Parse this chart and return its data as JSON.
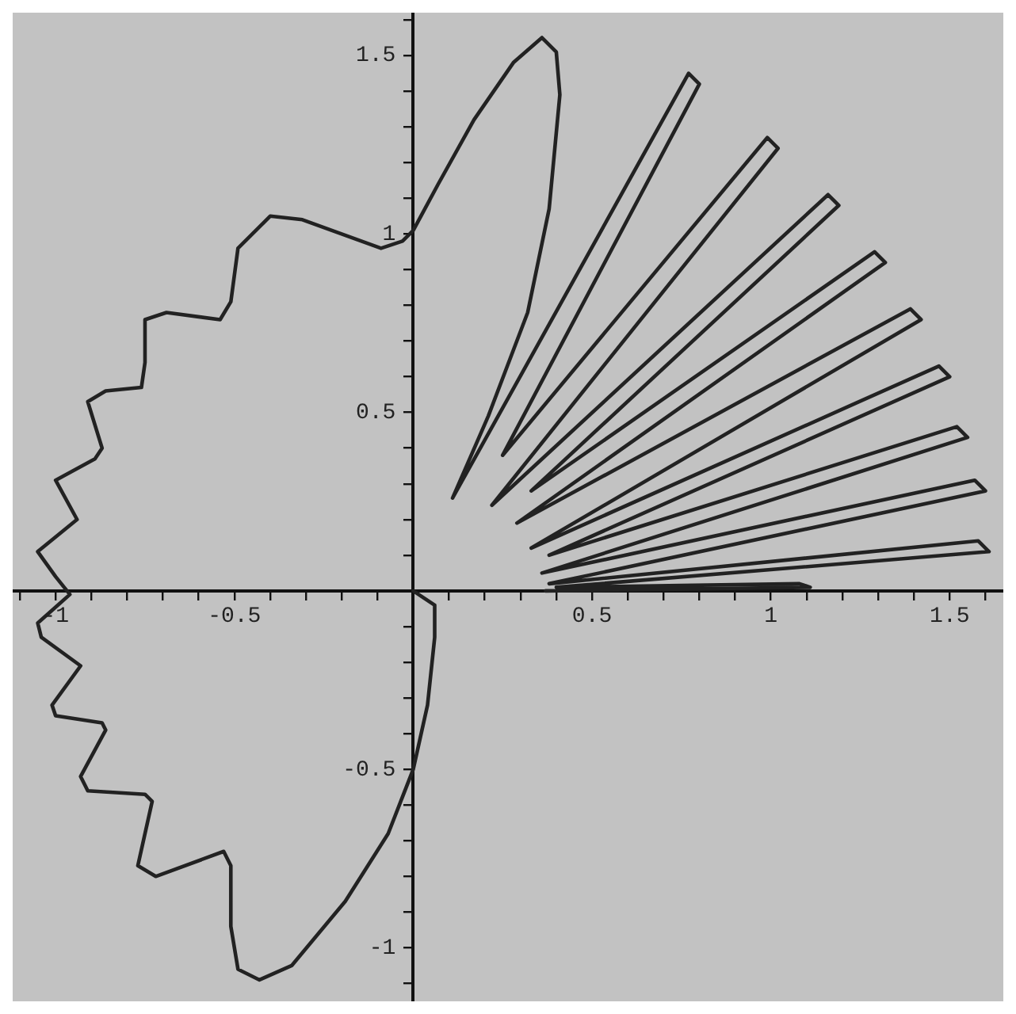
{
  "chart_data": {
    "type": "line",
    "grid": false,
    "marker": "none",
    "line_style": "solid",
    "xlim": [
      -1.12,
      1.65
    ],
    "ylim": [
      -1.15,
      1.62
    ],
    "xticks": [
      {
        "value": -1.1,
        "label": null
      },
      -1,
      {
        "value": -0.9,
        "label": null
      },
      {
        "value": -0.8,
        "label": null
      },
      {
        "value": -0.7,
        "label": null
      },
      {
        "value": -0.6,
        "label": null
      },
      -0.5,
      {
        "value": -0.4,
        "label": null
      },
      {
        "value": -0.3,
        "label": null
      },
      {
        "value": -0.2,
        "label": null
      },
      {
        "value": -0.1,
        "label": null
      },
      {
        "value": 0.1,
        "label": null
      },
      {
        "value": 0.2,
        "label": null
      },
      {
        "value": 0.3,
        "label": null
      },
      {
        "value": 0.4,
        "label": null
      },
      0.5,
      {
        "value": 0.6,
        "label": null
      },
      {
        "value": 0.7,
        "label": null
      },
      {
        "value": 0.8,
        "label": null
      },
      {
        "value": 0.9,
        "label": null
      },
      1,
      {
        "value": 1.1,
        "label": null
      },
      {
        "value": 1.2,
        "label": null
      },
      {
        "value": 1.3,
        "label": null
      },
      {
        "value": 1.4,
        "label": null
      },
      1.5,
      {
        "value": 1.6,
        "label": null
      }
    ],
    "yticks": [
      {
        "value": -1.1,
        "label": null
      },
      -1,
      {
        "value": -0.9,
        "label": null
      },
      {
        "value": -0.8,
        "label": null
      },
      {
        "value": -0.7,
        "label": null
      },
      {
        "value": -0.6,
        "label": null
      },
      -0.5,
      {
        "value": -0.4,
        "label": null
      },
      {
        "value": -0.3,
        "label": null
      },
      {
        "value": -0.2,
        "label": null
      },
      {
        "value": -0.1,
        "label": null
      },
      {
        "value": 0.1,
        "label": null
      },
      {
        "value": 0.2,
        "label": null
      },
      {
        "value": 0.3,
        "label": null
      },
      {
        "value": 0.4,
        "label": null
      },
      0.5,
      {
        "value": 0.6,
        "label": null
      },
      {
        "value": 0.7,
        "label": null
      },
      {
        "value": 0.8,
        "label": null
      },
      {
        "value": 0.9,
        "label": null
      },
      1,
      {
        "value": 1.1,
        "label": null
      },
      {
        "value": 1.2,
        "label": null
      },
      {
        "value": 1.3,
        "label": null
      },
      {
        "value": 1.4,
        "label": null
      },
      1.5,
      {
        "value": 1.6,
        "label": null
      }
    ],
    "series": [
      {
        "color": "#222222",
        "x": [
          0,
          0.06,
          0.06,
          0.04,
          0,
          -0.07,
          -0.19,
          -0.34,
          -0.43,
          -0.49,
          -0.51,
          -0.51,
          -0.53,
          -0.72,
          -0.77,
          -0.73,
          -0.75,
          -0.91,
          -0.93,
          -0.86,
          -0.87,
          -1,
          -1.01,
          -0.93,
          -1.04,
          -1.05,
          -0.96,
          -1,
          -1.05,
          -0.94,
          -1,
          -0.89,
          -0.87,
          -0.91,
          -0.86,
          -0.76,
          -0.75,
          -0.75,
          -0.69,
          -0.54,
          -0.51,
          -0.49,
          -0.4,
          -0.31,
          -0.09,
          -0.03,
          0,
          0.07,
          0.17,
          0.28,
          0.36,
          0.4,
          0.41,
          0.38,
          0.32,
          0.21,
          0.11,
          0.77,
          0.8,
          0.25,
          0.99,
          1.02,
          0.22,
          1.16,
          1.19,
          0.33,
          1.29,
          1.32,
          0.29,
          1.39,
          1.42,
          0.33,
          1.47,
          1.5,
          0.38,
          1.52,
          1.55,
          0.36,
          1.57,
          1.6,
          0.38,
          1.58,
          1.61,
          0.4,
          1.08,
          1.11,
          0.37
        ],
        "values": [
          0,
          -0.04,
          -0.13,
          -0.32,
          -0.5,
          -0.68,
          -0.87,
          -1.05,
          -1.09,
          -1.06,
          -0.94,
          -0.77,
          -0.73,
          -0.8,
          -0.77,
          -0.59,
          -0.57,
          -0.56,
          -0.52,
          -0.39,
          -0.37,
          -0.35,
          -0.32,
          -0.21,
          -0.13,
          -0.09,
          -0.01,
          0.04,
          0.11,
          0.2,
          0.31,
          0.37,
          0.4,
          0.53,
          0.56,
          0.57,
          0.64,
          0.76,
          0.78,
          0.76,
          0.81,
          0.96,
          1.05,
          1.04,
          0.96,
          0.98,
          1.01,
          1.14,
          1.32,
          1.48,
          1.55,
          1.51,
          1.39,
          1.07,
          0.78,
          0.49,
          0.26,
          1.45,
          1.42,
          0.38,
          1.27,
          1.24,
          0.24,
          1.11,
          1.08,
          0.28,
          0.95,
          0.92,
          0.19,
          0.79,
          0.76,
          0.12,
          0.63,
          0.6,
          0.1,
          0.46,
          0.43,
          0.05,
          0.31,
          0.28,
          0.02,
          0.14,
          0.11,
          0.01,
          0.02,
          0.01,
          0
        ]
      }
    ]
  }
}
